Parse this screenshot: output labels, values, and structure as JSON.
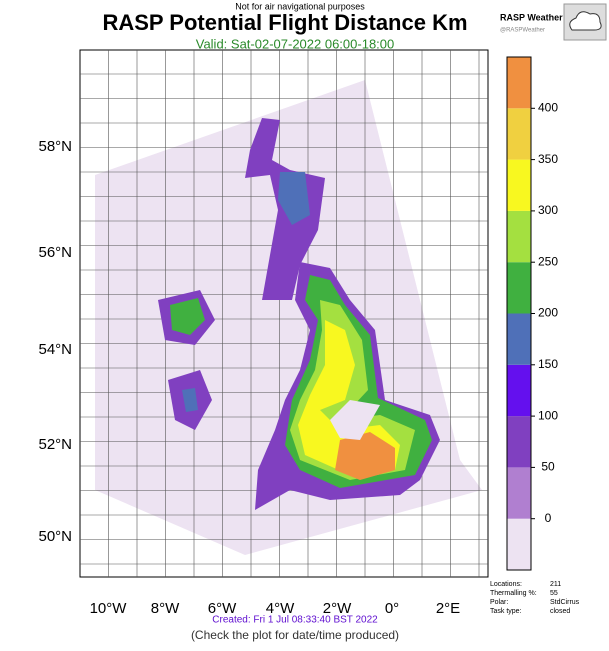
{
  "header": {
    "notice": "Not for air navigational purposes",
    "title": "RASP Potential Flight Distance Km",
    "valid": "Valid: Sat-02-07-2022 06:00-18:00",
    "brand": "RASP Weather",
    "handle": "@RASPWeather"
  },
  "map": {
    "lat_labels": [
      "58°N",
      "56°N",
      "54°N",
      "52°N",
      "50°N"
    ],
    "lon_labels": [
      "10°W",
      "8°W",
      "6°W",
      "4°W",
      "2°W",
      "0°",
      "2°E"
    ]
  },
  "colorbar": {
    "ticks": [
      0,
      50,
      100,
      150,
      200,
      250,
      300,
      350,
      400
    ],
    "colors": [
      "#ede3f2",
      "#b07fd0",
      "#8040c0",
      "#6410ee",
      "#4f70b8",
      "#40b040",
      "#a4e040",
      "#f8f820",
      "#f0d040",
      "#f09040"
    ]
  },
  "info": {
    "rows": [
      [
        "Locations:",
        "211"
      ],
      [
        "Thermalling %:",
        "55"
      ],
      [
        "Polar:",
        "StdCirrus"
      ],
      [
        "Task type:",
        "closed"
      ]
    ]
  },
  "footer": {
    "created": "Created: Fri  1 Jul 08:33:40 BST 2022",
    "note": "(Check the plot for date/time produced)"
  }
}
